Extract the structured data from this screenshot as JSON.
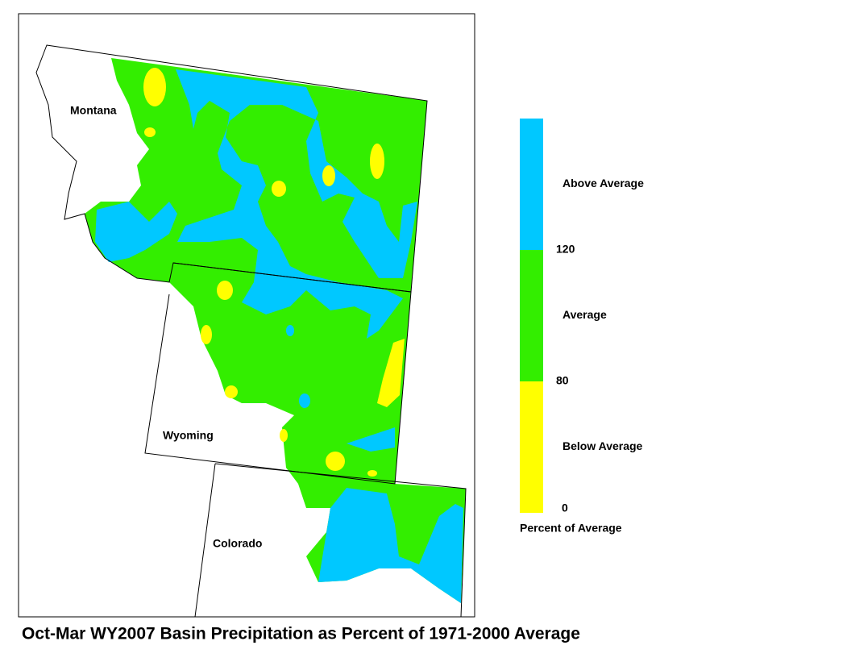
{
  "title": "Oct-Mar WY2007 Basin Precipitation as Percent of 1971-2000 Average",
  "map": {
    "states": [
      {
        "label": "Montana"
      },
      {
        "label": "Wyoming"
      },
      {
        "label": "Colorado"
      }
    ]
  },
  "legend": {
    "classes": [
      {
        "label": "Above Average",
        "color": "#00c8ff"
      },
      {
        "label": "Average",
        "color": "#33ee00"
      },
      {
        "label": "Below Average",
        "color": "#ffff00"
      }
    ],
    "breaks": [
      120,
      80,
      0
    ],
    "caption": "Percent of Average"
  }
}
